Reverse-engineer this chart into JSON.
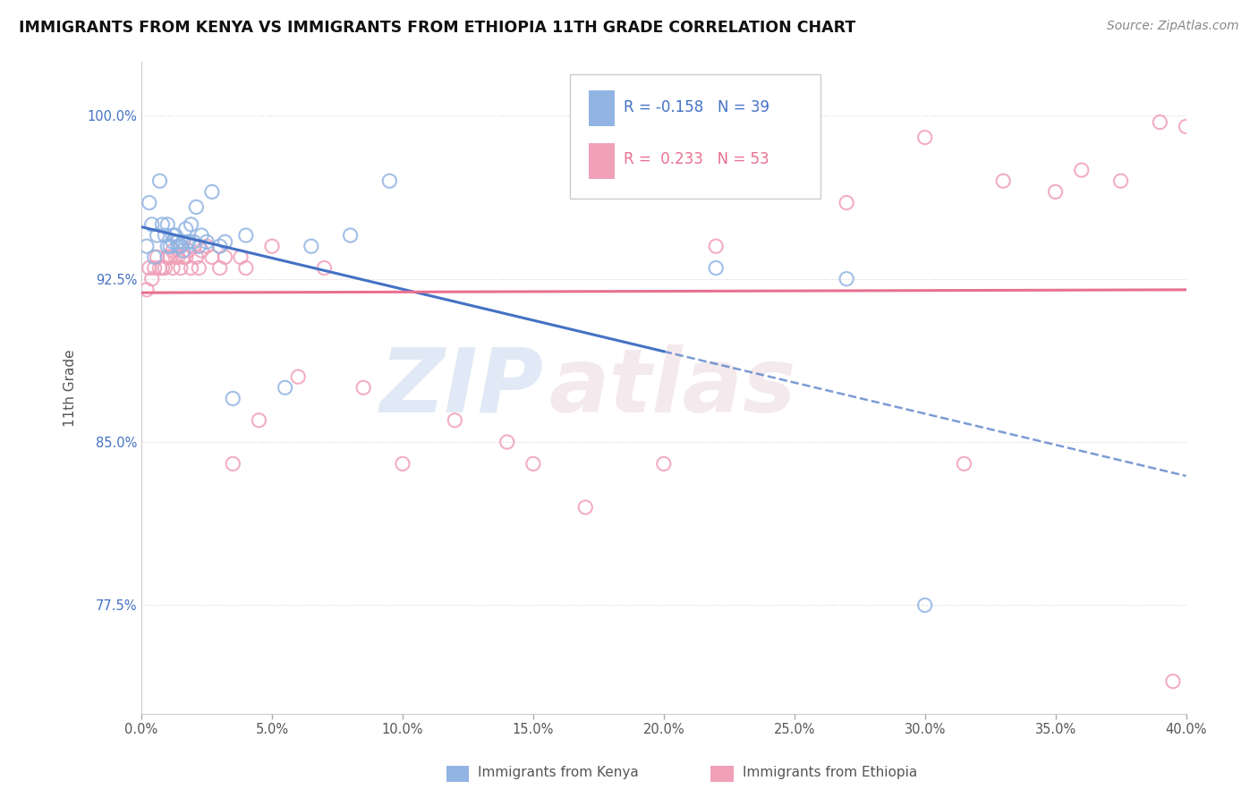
{
  "title": "IMMIGRANTS FROM KENYA VS IMMIGRANTS FROM ETHIOPIA 11TH GRADE CORRELATION CHART",
  "source": "Source: ZipAtlas.com",
  "ylabel": "11th Grade",
  "kenya_R": "-0.158",
  "kenya_N": "39",
  "ethiopia_R": "0.233",
  "ethiopia_N": "53",
  "kenya_color": "#92B4E3",
  "ethiopia_color": "#F0A0B8",
  "kenya_line_color": "#4472C4",
  "ethiopia_line_color": "#E87090",
  "watermark_zip": "ZIP",
  "watermark_atlas": "atlas",
  "legend_kenya": "Immigrants from Kenya",
  "legend_ethiopia": "Immigrants from Ethiopia",
  "xlim": [
    0.0,
    0.4
  ],
  "ylim": [
    0.725,
    1.025
  ],
  "ytick_positions": [
    0.775,
    0.85,
    0.925,
    1.0
  ],
  "ytick_labels": [
    "77.5%",
    "85.0%",
    "92.5%",
    "100.0%"
  ],
  "xtick_positions": [
    0.0,
    0.05,
    0.1,
    0.15,
    0.2,
    0.25,
    0.3,
    0.35,
    0.4
  ],
  "xtick_labels": [
    "0.0%",
    "5.0%",
    "10.0%",
    "15.0%",
    "20.0%",
    "25.0%",
    "30.0%",
    "35.0%",
    "40.0%"
  ],
  "kenya_scatter_x": [
    0.002,
    0.003,
    0.004,
    0.005,
    0.006,
    0.007,
    0.008,
    0.009,
    0.01,
    0.01,
    0.011,
    0.012,
    0.012,
    0.013,
    0.014,
    0.014,
    0.015,
    0.016,
    0.016,
    0.017,
    0.018,
    0.019,
    0.02,
    0.021,
    0.022,
    0.023,
    0.025,
    0.027,
    0.03,
    0.032,
    0.035,
    0.04,
    0.055,
    0.065,
    0.08,
    0.095,
    0.22,
    0.27,
    0.3
  ],
  "kenya_scatter_y": [
    0.94,
    0.96,
    0.95,
    0.935,
    0.945,
    0.97,
    0.95,
    0.945,
    0.94,
    0.95,
    0.94,
    0.945,
    0.942,
    0.945,
    0.94,
    0.942,
    0.94,
    0.942,
    0.938,
    0.948,
    0.942,
    0.95,
    0.942,
    0.958,
    0.94,
    0.945,
    0.942,
    0.965,
    0.94,
    0.942,
    0.87,
    0.945,
    0.875,
    0.94,
    0.945,
    0.97,
    0.93,
    0.925,
    0.775
  ],
  "ethiopia_scatter_x": [
    0.002,
    0.003,
    0.004,
    0.005,
    0.006,
    0.007,
    0.008,
    0.009,
    0.01,
    0.01,
    0.011,
    0.012,
    0.012,
    0.013,
    0.014,
    0.015,
    0.016,
    0.017,
    0.018,
    0.019,
    0.02,
    0.021,
    0.022,
    0.023,
    0.025,
    0.027,
    0.03,
    0.032,
    0.035,
    0.038,
    0.04,
    0.045,
    0.05,
    0.06,
    0.07,
    0.085,
    0.1,
    0.12,
    0.14,
    0.15,
    0.17,
    0.2,
    0.22,
    0.27,
    0.3,
    0.315,
    0.33,
    0.35,
    0.36,
    0.375,
    0.39,
    0.4,
    0.395
  ],
  "ethiopia_scatter_y": [
    0.92,
    0.93,
    0.925,
    0.93,
    0.935,
    0.93,
    0.93,
    0.93,
    0.935,
    0.935,
    0.935,
    0.938,
    0.93,
    0.935,
    0.935,
    0.93,
    0.935,
    0.935,
    0.938,
    0.93,
    0.94,
    0.935,
    0.93,
    0.938,
    0.94,
    0.935,
    0.93,
    0.935,
    0.84,
    0.935,
    0.93,
    0.86,
    0.94,
    0.88,
    0.93,
    0.875,
    0.84,
    0.86,
    0.85,
    0.84,
    0.82,
    0.84,
    0.94,
    0.96,
    0.99,
    0.84,
    0.97,
    0.965,
    0.975,
    0.97,
    0.997,
    0.995,
    0.74
  ]
}
